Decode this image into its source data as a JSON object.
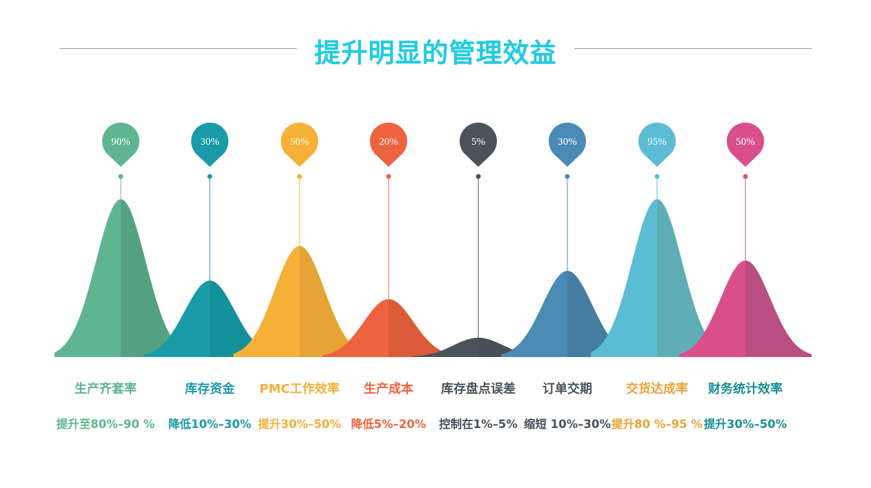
{
  "title": "提升明显的管理效益",
  "items": [
    {
      "label": "生产齐套率",
      "range": "提升至80%–90 %",
      "pin": "90%",
      "color": "#5fb592",
      "shade": "#55a283",
      "text_color": "#5fb592"
    },
    {
      "label": "库存资金",
      "range": "降低10%–30%",
      "pin": "30%",
      "color": "#1a9ba8",
      "shade": "#14909a",
      "text_color": "#1a9ba8"
    },
    {
      "label": "PMC工作效率",
      "range": "提升30%–50%",
      "pin": "50%",
      "color": "#f5b038",
      "shade": "#e6a434",
      "text_color": "#f5b038"
    },
    {
      "label": "生产成本",
      "range": "降低5%–20%",
      "pin": "20%",
      "color": "#ec6340",
      "shade": "#db5a38",
      "text_color": "#ec6340"
    },
    {
      "label": "库存盘点误差",
      "range": "控制在1%–5%",
      "pin": "5%",
      "color": "#4a535b",
      "shade": "#474f56",
      "text_color": "#4a535b"
    },
    {
      "label": "订单交期",
      "range": "缩短 10%–30%",
      "pin": "30%",
      "color": "#4a8ab5",
      "shade": "#457ea2",
      "text_color": "#4a535b"
    },
    {
      "label": "交货达成率",
      "range": "提升80 %–95 %",
      "pin": "95%",
      "color": "#5bbcd4",
      "shade": "#5faeb5",
      "text_color": "#eba33a"
    },
    {
      "label": "财务统计效率",
      "range": "提升30%–50%",
      "pin": "50%",
      "color": "#d84f8c",
      "shade": "#b84e82",
      "text_color": "#1a8f96"
    }
  ]
}
